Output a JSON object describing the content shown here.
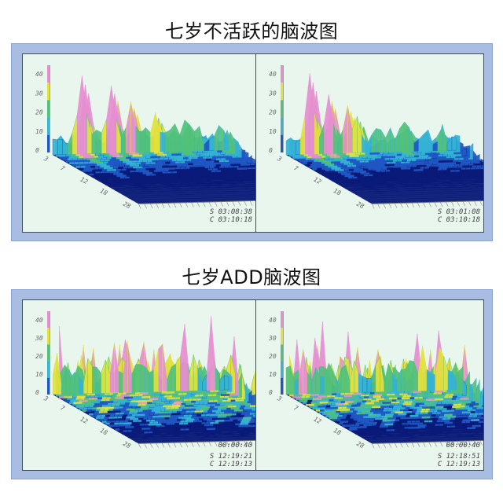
{
  "sections": [
    {
      "title": "七岁不活跃的脑波图",
      "panels": [
        {
          "id": "top-left",
          "ts1": "S 03:08:38",
          "ts2": "C 03:10:18",
          "peaks": "sparse",
          "y_ticks": [
            "40",
            "30",
            "20",
            "10",
            "0"
          ],
          "x_ticks": [
            "3",
            "7",
            "12",
            "18",
            "28"
          ]
        },
        {
          "id": "top-right",
          "ts1": "S 03:01:08",
          "ts2": "C 03:10:18",
          "peaks": "sparse",
          "y_ticks": [
            "40",
            "30",
            "20",
            "10",
            "0"
          ],
          "x_ticks": [
            "3",
            "7",
            "12",
            "18",
            "28"
          ]
        }
      ]
    },
    {
      "title": "七岁ADD脑波图",
      "panels": [
        {
          "id": "bottom-left",
          "time": "00:00:40",
          "ts1": "S 12:19:21",
          "ts2": "C 12:19:13",
          "peaks": "dense",
          "y_ticks": [
            "40",
            "30",
            "20",
            "10",
            "0"
          ],
          "x_ticks": [
            "3",
            "7",
            "12",
            "18",
            "28"
          ]
        },
        {
          "id": "bottom-right",
          "time": "00:00:40",
          "ts1": "S 12:18:51",
          "ts2": "C 12:19:13",
          "peaks": "dense",
          "y_ticks": [
            "40",
            "30",
            "20",
            "10",
            "0"
          ],
          "x_ticks": [
            "3",
            "7",
            "12",
            "18",
            "28"
          ]
        }
      ]
    }
  ],
  "colors": {
    "frame": "#a9bde3",
    "panel_bg": "#e9f6ee",
    "pink": "#e58fd0",
    "yellow": "#e2e23a",
    "green": "#52c27a",
    "cyan": "#34b3d6",
    "blue": "#1f58c4",
    "navy": "#0a1a78"
  }
}
